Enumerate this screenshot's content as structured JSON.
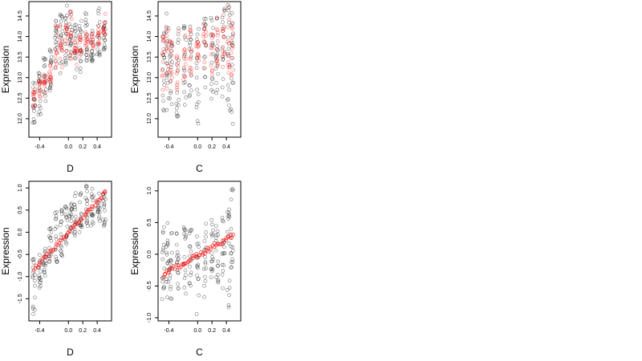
{
  "chart_data": [
    {
      "type": "scatter",
      "position": "top-left",
      "xlabel": "D",
      "ylabel": "Expression",
      "xlim": [
        -0.55,
        0.6
      ],
      "ylim": [
        11.55,
        14.85
      ],
      "x_ticks": [
        -0.4,
        0.0,
        0.2,
        0.4
      ],
      "x_tick_labels": [
        "-0.4",
        "0.0",
        "0.2",
        "0.4"
      ],
      "y_ticks": [
        12.0,
        12.5,
        13.0,
        13.5,
        14.0,
        14.5
      ],
      "y_tick_labels": [
        "12.0",
        "12.5",
        "13.0",
        "13.5",
        "14.0",
        "14.5"
      ],
      "grid": false,
      "series": [
        {
          "color": "#000000",
          "marker": "open-circle",
          "clusters": [
            {
              "x": -0.48,
              "y_min": 11.75,
              "y_max": 12.9
            },
            {
              "x": -0.4,
              "y_min": 12.0,
              "y_max": 13.2
            },
            {
              "x": -0.33,
              "y_min": 12.3,
              "y_max": 13.5
            },
            {
              "x": -0.25,
              "y_min": 12.5,
              "y_max": 13.8
            },
            {
              "x": -0.17,
              "y_min": 13.0,
              "y_max": 14.4
            },
            {
              "x": -0.1,
              "y_min": 13.1,
              "y_max": 14.7
            },
            {
              "x": -0.03,
              "y_min": 13.3,
              "y_max": 14.8
            },
            {
              "x": 0.03,
              "y_min": 13.4,
              "y_max": 14.8
            },
            {
              "x": 0.1,
              "y_min": 13.0,
              "y_max": 14.3
            },
            {
              "x": 0.17,
              "y_min": 13.1,
              "y_max": 14.4
            },
            {
              "x": 0.25,
              "y_min": 13.3,
              "y_max": 14.6
            },
            {
              "x": 0.33,
              "y_min": 13.4,
              "y_max": 14.2
            },
            {
              "x": 0.42,
              "y_min": 13.5,
              "y_max": 14.7
            },
            {
              "x": 0.5,
              "y_min": 13.6,
              "y_max": 14.4
            }
          ]
        },
        {
          "color": "#ff0000",
          "marker": "open-circle",
          "clusters": [
            {
              "x": -0.48,
              "y_min": 12.3,
              "y_max": 12.85
            },
            {
              "x": -0.4,
              "y_min": 12.5,
              "y_max": 12.95
            },
            {
              "x": -0.33,
              "y_min": 12.6,
              "y_max": 13.1
            },
            {
              "x": -0.25,
              "y_min": 12.8,
              "y_max": 13.35
            },
            {
              "x": -0.17,
              "y_min": 13.1,
              "y_max": 14.3
            },
            {
              "x": -0.1,
              "y_min": 13.2,
              "y_max": 14.4
            },
            {
              "x": -0.03,
              "y_min": 13.3,
              "y_max": 14.5
            },
            {
              "x": 0.03,
              "y_min": 13.4,
              "y_max": 14.6
            },
            {
              "x": 0.1,
              "y_min": 13.3,
              "y_max": 13.9
            },
            {
              "x": 0.17,
              "y_min": 13.4,
              "y_max": 14.0
            },
            {
              "x": 0.25,
              "y_min": 13.6,
              "y_max": 14.2
            },
            {
              "x": 0.33,
              "y_min": 13.7,
              "y_max": 14.1
            },
            {
              "x": 0.42,
              "y_min": 13.8,
              "y_max": 14.3
            },
            {
              "x": 0.5,
              "y_min": 13.9,
              "y_max": 14.6
            }
          ]
        }
      ]
    },
    {
      "type": "scatter",
      "position": "top-right",
      "xlabel": "C",
      "ylabel": "Expression",
      "xlim": [
        -0.55,
        0.6
      ],
      "ylim": [
        11.55,
        14.85
      ],
      "x_ticks": [
        -0.4,
        0.0,
        0.2,
        0.4
      ],
      "x_tick_labels": [
        "-0.4",
        "0.0",
        "0.2",
        "0.4"
      ],
      "y_ticks": [
        12.0,
        12.5,
        13.0,
        13.5,
        14.0,
        14.5
      ],
      "y_tick_labels": [
        "12.0",
        "12.5",
        "13.0",
        "13.5",
        "14.0",
        "14.5"
      ],
      "grid": false,
      "series": [
        {
          "color": "#000000",
          "marker": "open-circle",
          "clusters": [
            {
              "x": -0.48,
              "y_min": 12.0,
              "y_max": 14.4
            },
            {
              "x": -0.42,
              "y_min": 12.2,
              "y_max": 14.6
            },
            {
              "x": -0.37,
              "y_min": 12.3,
              "y_max": 14.0
            },
            {
              "x": -0.28,
              "y_min": 12.0,
              "y_max": 14.2
            },
            {
              "x": -0.18,
              "y_min": 12.3,
              "y_max": 14.3
            },
            {
              "x": -0.1,
              "y_min": 12.5,
              "y_max": 14.4
            },
            {
              "x": 0.0,
              "y_min": 11.75,
              "y_max": 14.2
            },
            {
              "x": 0.1,
              "y_min": 12.7,
              "y_max": 14.5
            },
            {
              "x": 0.2,
              "y_min": 12.4,
              "y_max": 14.6
            },
            {
              "x": 0.27,
              "y_min": 12.6,
              "y_max": 14.7
            },
            {
              "x": 0.36,
              "y_min": 12.5,
              "y_max": 14.8
            },
            {
              "x": 0.43,
              "y_min": 12.2,
              "y_max": 14.8
            },
            {
              "x": 0.48,
              "y_min": 11.8,
              "y_max": 14.8
            }
          ]
        },
        {
          "color": "#ff0000",
          "marker": "open-circle",
          "clusters": [
            {
              "x": -0.48,
              "y_min": 12.5,
              "y_max": 14.0
            },
            {
              "x": -0.42,
              "y_min": 12.7,
              "y_max": 14.3
            },
            {
              "x": -0.37,
              "y_min": 12.8,
              "y_max": 13.9
            },
            {
              "x": -0.28,
              "y_min": 12.7,
              "y_max": 14.2
            },
            {
              "x": -0.18,
              "y_min": 12.9,
              "y_max": 14.1
            },
            {
              "x": -0.1,
              "y_min": 13.0,
              "y_max": 14.2
            },
            {
              "x": 0.0,
              "y_min": 13.3,
              "y_max": 13.9
            },
            {
              "x": 0.1,
              "y_min": 13.2,
              "y_max": 14.3
            },
            {
              "x": 0.2,
              "y_min": 13.0,
              "y_max": 14.4
            },
            {
              "x": 0.27,
              "y_min": 13.3,
              "y_max": 14.5
            },
            {
              "x": 0.36,
              "y_min": 13.2,
              "y_max": 14.6
            },
            {
              "x": 0.43,
              "y_min": 12.9,
              "y_max": 14.7
            },
            {
              "x": 0.48,
              "y_min": 13.0,
              "y_max": 14.7
            }
          ]
        }
      ]
    },
    {
      "type": "scatter",
      "position": "bottom-left",
      "xlabel": "D",
      "ylabel": "Expression",
      "xlim": [
        -0.55,
        0.6
      ],
      "ylim": [
        -2.0,
        1.15
      ],
      "x_ticks": [
        -0.4,
        0.0,
        0.2,
        0.4
      ],
      "x_tick_labels": [
        "-0.4",
        "0.0",
        "0.2",
        "0.4"
      ],
      "y_ticks": [
        -1.5,
        -1.0,
        -0.5,
        0.0,
        0.5,
        1.0
      ],
      "y_tick_labels": [
        "-1.5",
        "-1.0",
        "-0.5",
        "0.0",
        "0.5",
        "1.0"
      ],
      "grid": false,
      "series": [
        {
          "color": "#000000",
          "marker": "open-circle",
          "clusters": [
            {
              "x": -0.48,
              "y_min": -1.85,
              "y_max": -0.6
            },
            {
              "x": -0.4,
              "y_min": -1.3,
              "y_max": -0.45
            },
            {
              "x": -0.33,
              "y_min": -1.1,
              "y_max": -0.3
            },
            {
              "x": -0.25,
              "y_min": -0.8,
              "y_max": 0.1
            },
            {
              "x": -0.17,
              "y_min": -0.7,
              "y_max": 0.5
            },
            {
              "x": -0.1,
              "y_min": -0.6,
              "y_max": 0.6
            },
            {
              "x": -0.03,
              "y_min": -0.3,
              "y_max": 0.65
            },
            {
              "x": 0.03,
              "y_min": -0.2,
              "y_max": 0.7
            },
            {
              "x": 0.1,
              "y_min": -0.1,
              "y_max": 0.9
            },
            {
              "x": 0.17,
              "y_min": 0.0,
              "y_max": 1.0
            },
            {
              "x": 0.25,
              "y_min": 0.1,
              "y_max": 1.05
            },
            {
              "x": 0.33,
              "y_min": 0.15,
              "y_max": 1.0
            },
            {
              "x": 0.42,
              "y_min": 0.2,
              "y_max": 0.95
            },
            {
              "x": 0.5,
              "y_min": 0.1,
              "y_max": 0.9
            }
          ]
        },
        {
          "color": "#ff0000",
          "marker": "open-circle",
          "trend": {
            "x": [
              -0.48,
              0.52
            ],
            "y": [
              -0.85,
              0.9
            ]
          }
        }
      ]
    },
    {
      "type": "scatter",
      "position": "bottom-right",
      "xlabel": "C",
      "ylabel": "Expression",
      "xlim": [
        -0.55,
        0.6
      ],
      "ylim": [
        -1.05,
        1.15
      ],
      "x_ticks": [
        -0.4,
        0.0,
        0.2,
        0.4
      ],
      "x_tick_labels": [
        "-0.4",
        "0.0",
        "0.2",
        "0.4"
      ],
      "y_ticks": [
        -1.0,
        -0.5,
        0.0,
        0.5,
        1.0
      ],
      "y_tick_labels": [
        "-1.0",
        "-0.5",
        "0.0",
        "0.5",
        "1.0"
      ],
      "grid": false,
      "series": [
        {
          "color": "#000000",
          "marker": "open-circle",
          "clusters": [
            {
              "x": -0.48,
              "y_min": -0.85,
              "y_max": 0.45
            },
            {
              "x": -0.42,
              "y_min": -0.7,
              "y_max": 0.5
            },
            {
              "x": -0.37,
              "y_min": -0.8,
              "y_max": 0.5
            },
            {
              "x": -0.28,
              "y_min": -0.6,
              "y_max": 0.4
            },
            {
              "x": -0.18,
              "y_min": -0.7,
              "y_max": 0.45
            },
            {
              "x": -0.1,
              "y_min": -0.55,
              "y_max": 0.4
            },
            {
              "x": 0.0,
              "y_min": -0.95,
              "y_max": 0.45
            },
            {
              "x": 0.1,
              "y_min": -0.7,
              "y_max": 0.5
            },
            {
              "x": 0.2,
              "y_min": -0.45,
              "y_max": 0.55
            },
            {
              "x": 0.27,
              "y_min": -0.5,
              "y_max": 0.6
            },
            {
              "x": 0.36,
              "y_min": -0.55,
              "y_max": 0.7
            },
            {
              "x": 0.43,
              "y_min": -0.85,
              "y_max": 0.75
            },
            {
              "x": 0.48,
              "y_min": -0.3,
              "y_max": 1.1
            }
          ]
        },
        {
          "color": "#ff0000",
          "marker": "open-circle",
          "trend": {
            "x": [
              -0.48,
              0.5
            ],
            "y": [
              -0.32,
              0.3
            ]
          }
        }
      ]
    }
  ]
}
